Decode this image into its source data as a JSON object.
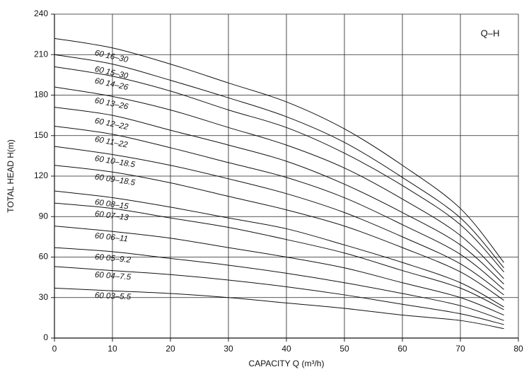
{
  "chart_data": {
    "type": "line",
    "annotation": "Q–H",
    "x_label": "CAPACITY Q (m³/h)",
    "y_label": "TOTAL HEAD H(m)",
    "x": [
      0,
      10,
      20,
      30,
      40,
      50,
      60,
      70,
      77.5
    ],
    "series": [
      {
        "name": "60 16–30",
        "color": "#111111",
        "values": [
          222,
          215,
          203,
          189,
          175,
          155,
          128,
          96,
          56
        ]
      },
      {
        "name": "60 15–30",
        "color": "#111111",
        "values": [
          210,
          203,
          191,
          178,
          164,
          145,
          119,
          89,
          52
        ]
      },
      {
        "name": "60 14–26",
        "color": "#111111",
        "values": [
          201,
          194,
          183,
          169,
          156,
          137,
          113,
          84,
          49
        ]
      },
      {
        "name": "60 13–26",
        "color": "#111111",
        "values": [
          186,
          179,
          169,
          156,
          143,
          126,
          103,
          76,
          44
        ]
      },
      {
        "name": "60 12–22",
        "color": "#111111",
        "values": [
          171,
          165,
          154,
          143,
          131,
          114,
          93,
          69,
          40
        ]
      },
      {
        "name": "60 11–22",
        "color": "#111111",
        "values": [
          157,
          151,
          141,
          130,
          119,
          104,
          84,
          62,
          36
        ]
      },
      {
        "name": "60 10–18.5",
        "color": "#111111",
        "values": [
          142,
          136,
          128,
          118,
          107,
          93,
          75,
          55,
          32
        ]
      },
      {
        "name": "60 09–18.5",
        "color": "#111111",
        "values": [
          128,
          123,
          115,
          105,
          95,
          83,
          67,
          49,
          28
        ]
      },
      {
        "name": "60 08–15",
        "color": "#111111",
        "values": [
          109,
          104,
          97,
          89,
          81,
          69,
          56,
          41,
          23
        ]
      },
      {
        "name": "60 07–13",
        "color": "#111111",
        "values": [
          100,
          96,
          89,
          82,
          73,
          63,
          50,
          37,
          21
        ]
      },
      {
        "name": "60 06–11",
        "color": "#111111",
        "values": [
          83,
          79,
          74,
          67,
          60,
          52,
          41,
          30,
          17
        ]
      },
      {
        "name": "60 05–9.2",
        "color": "#111111",
        "values": [
          67,
          64,
          59,
          54,
          48,
          41,
          33,
          24,
          13
        ]
      },
      {
        "name": "60 04–7.5",
        "color": "#111111",
        "values": [
          53,
          50,
          47,
          43,
          38,
          32,
          25,
          18,
          10
        ]
      },
      {
        "name": "60 03–5.5",
        "color": "#111111",
        "values": [
          37,
          35,
          33,
          30,
          26,
          22,
          17,
          13,
          7
        ]
      }
    ],
    "xlim": [
      0,
      80
    ],
    "xticks": [
      0,
      10,
      20,
      30,
      40,
      50,
      60,
      70,
      80
    ],
    "ylim": [
      0,
      240
    ],
    "yticks": [
      0,
      30,
      60,
      90,
      120,
      150,
      180,
      210,
      240
    ],
    "grid": true
  }
}
